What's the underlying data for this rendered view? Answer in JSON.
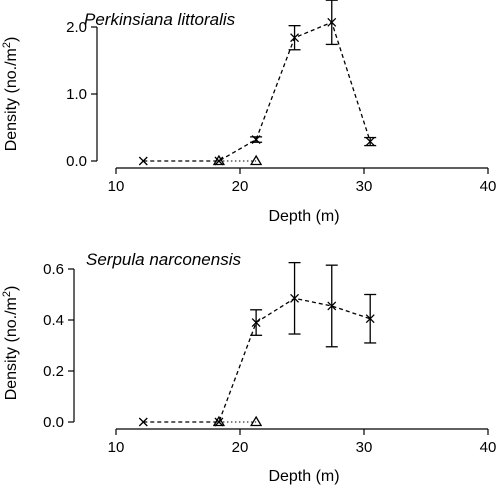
{
  "chart_data": [
    {
      "type": "scatter",
      "title": "Perkinsiana littoralis",
      "xlabel": "Depth (m)",
      "ylabel": "Density (no./m²)",
      "xlim": [
        10,
        40
      ],
      "ylim": [
        0,
        2.0
      ],
      "xticks": [
        "10",
        "20",
        "30",
        "40"
      ],
      "yticks": [
        "0.0",
        "1.0",
        "2.0"
      ],
      "series": [
        {
          "marker": "x",
          "line": "dashed",
          "points": [
            {
              "x": 12.2,
              "y": 0.0
            },
            {
              "x": 18.3,
              "y": 0.0
            },
            {
              "x": 21.3,
              "y": 0.32,
              "err": 0.04
            },
            {
              "x": 24.4,
              "y": 1.84,
              "err": 0.18
            },
            {
              "x": 27.4,
              "y": 2.07,
              "err": 0.33
            },
            {
              "x": 30.5,
              "y": 0.29,
              "err": 0.06
            }
          ]
        },
        {
          "marker": "triangle",
          "line": "dotted",
          "points": [
            {
              "x": 18.3,
              "y": 0.0
            },
            {
              "x": 21.3,
              "y": 0.0
            }
          ]
        }
      ]
    },
    {
      "type": "scatter",
      "title": "Serpula narconensis",
      "xlabel": "Depth (m)",
      "ylabel": "Density (no./m²)",
      "xlim": [
        10,
        40
      ],
      "ylim": [
        0,
        0.6
      ],
      "xticks": [
        "10",
        "20",
        "30",
        "40"
      ],
      "yticks": [
        "0.0",
        "0.2",
        "0.4",
        "0.6"
      ],
      "series": [
        {
          "marker": "x",
          "line": "dashed",
          "points": [
            {
              "x": 12.2,
              "y": 0.0
            },
            {
              "x": 18.3,
              "y": 0.0
            },
            {
              "x": 21.3,
              "y": 0.39,
              "err": 0.05
            },
            {
              "x": 24.4,
              "y": 0.485,
              "err": 0.14
            },
            {
              "x": 27.4,
              "y": 0.455,
              "err": 0.16
            },
            {
              "x": 30.5,
              "y": 0.405,
              "err": 0.095
            }
          ]
        },
        {
          "marker": "triangle",
          "line": "dotted",
          "points": [
            {
              "x": 18.3,
              "y": 0.0
            },
            {
              "x": 21.3,
              "y": 0.0
            }
          ]
        }
      ]
    }
  ]
}
